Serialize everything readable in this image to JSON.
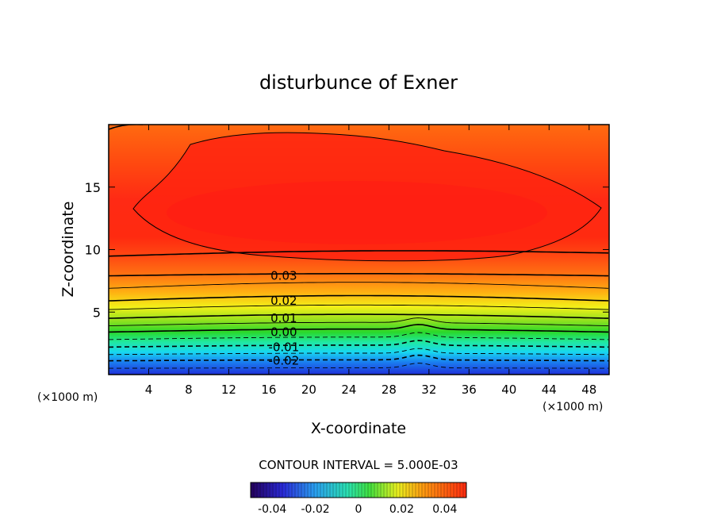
{
  "chart_data": {
    "type": "heatmap",
    "title": "disturbunce of Exner",
    "xlabel": "X-coordinate",
    "ylabel": "Z-coordinate",
    "x_unit_left": "(×1000 m)",
    "x_unit_right": "(×1000 m)",
    "xlim": [
      0,
      50
    ],
    "ylim": [
      0,
      20
    ],
    "xticks": [
      "4",
      "8",
      "12",
      "16",
      "20",
      "24",
      "28",
      "32",
      "36",
      "40",
      "44",
      "48"
    ],
    "xtick_values": [
      4,
      8,
      12,
      16,
      20,
      24,
      28,
      32,
      36,
      40,
      44,
      48
    ],
    "yticks": [
      "5",
      "10",
      "15"
    ],
    "ytick_values": [
      5,
      10,
      15
    ],
    "contour_interval_text": "CONTOUR INTERVAL = 5.000E-03",
    "contour_labels": [
      {
        "text": "0.03",
        "x": 17.5,
        "z": 7.9
      },
      {
        "text": "0.02",
        "x": 17.5,
        "z": 5.9
      },
      {
        "text": "0.01",
        "x": 17.5,
        "z": 4.5
      },
      {
        "text": "0.00",
        "x": 17.5,
        "z": 3.4
      },
      {
        "text": "-0.01",
        "x": 17.5,
        "z": 2.2
      },
      {
        "text": "-0.02",
        "x": 17.5,
        "z": 1.1
      }
    ],
    "contour_levels_z": [
      {
        "level": 0.035,
        "z": 9.6,
        "dashed": false,
        "bold": true
      },
      {
        "level": 0.03,
        "z": 7.9,
        "dashed": false,
        "bold": true
      },
      {
        "level": 0.025,
        "z": 6.9,
        "dashed": false,
        "bold": false
      },
      {
        "level": 0.02,
        "z": 5.9,
        "dashed": false,
        "bold": true
      },
      {
        "level": 0.015,
        "z": 5.2,
        "dashed": false,
        "bold": false
      },
      {
        "level": 0.01,
        "z": 4.5,
        "dashed": false,
        "bold": true
      },
      {
        "level": 0.005,
        "z": 3.9,
        "dashed": false,
        "bold": false
      },
      {
        "level": 0.0,
        "z": 3.4,
        "dashed": false,
        "bold": true
      },
      {
        "level": -0.005,
        "z": 2.8,
        "dashed": true,
        "bold": false
      },
      {
        "level": -0.01,
        "z": 2.2,
        "dashed": true,
        "bold": true
      },
      {
        "level": -0.015,
        "z": 1.6,
        "dashed": true,
        "bold": false
      },
      {
        "level": -0.02,
        "z": 1.1,
        "dashed": true,
        "bold": true
      },
      {
        "level": -0.025,
        "z": 0.5,
        "dashed": true,
        "bold": false
      }
    ],
    "colorbar": {
      "ticks": [
        "-0.04",
        "-0.02",
        "0",
        "0.02",
        "0.04"
      ],
      "tick_values": [
        -0.04,
        -0.02,
        0,
        0.02,
        0.04
      ],
      "range": [
        -0.05,
        0.05
      ]
    }
  }
}
